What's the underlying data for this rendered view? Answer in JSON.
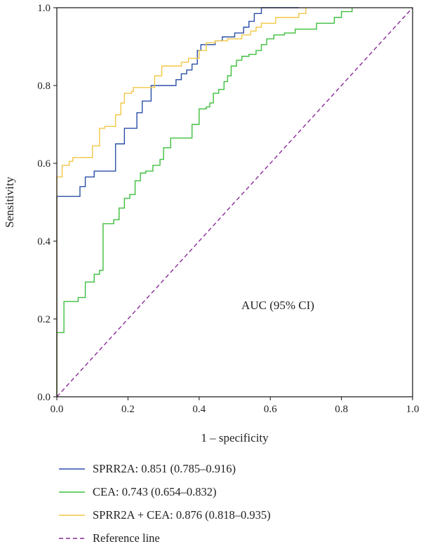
{
  "chart_data": {
    "type": "line",
    "title": "",
    "xlabel": "1 – specificity",
    "ylabel": "Sensitivity",
    "xlim": [
      0,
      1
    ],
    "ylim": [
      0,
      1
    ],
    "x_ticks": [
      "0.0",
      "0.2",
      "0.4",
      "0.6",
      "0.8",
      "1.0"
    ],
    "y_ticks": [
      "0.0",
      "0.2",
      "0.4",
      "0.6",
      "0.8",
      "1.0"
    ],
    "annotation": "AUC (95% CI)",
    "grid": false,
    "legend_position": "bottom",
    "series": [
      {
        "name": "SPRR2A: 0.851 (0.785–0.916)",
        "color": "#2a4ea8",
        "x": [
          0,
          0,
          0.065,
          0.065,
          0.08,
          0.08,
          0.105,
          0.105,
          0.165,
          0.165,
          0.19,
          0.19,
          0.225,
          0.225,
          0.24,
          0.24,
          0.265,
          0.265,
          0.335,
          0.335,
          0.35,
          0.35,
          0.365,
          0.365,
          0.38,
          0.38,
          0.395,
          0.395,
          0.405,
          0.405,
          0.445,
          0.445,
          0.465,
          0.465,
          0.5,
          0.5,
          0.525,
          0.525,
          0.54,
          0.54,
          0.555,
          0.555,
          0.575,
          0.575,
          0.68,
          0.68
        ],
        "y": [
          0,
          0.515,
          0.515,
          0.54,
          0.54,
          0.565,
          0.565,
          0.58,
          0.58,
          0.65,
          0.65,
          0.69,
          0.69,
          0.73,
          0.73,
          0.76,
          0.76,
          0.8,
          0.8,
          0.815,
          0.815,
          0.83,
          0.83,
          0.84,
          0.84,
          0.855,
          0.855,
          0.89,
          0.89,
          0.905,
          0.905,
          0.915,
          0.915,
          0.925,
          0.925,
          0.935,
          0.935,
          0.95,
          0.95,
          0.965,
          0.965,
          0.985,
          0.985,
          1.0,
          1.0,
          1.0
        ]
      },
      {
        "name": "CEA: 0.743 (0.654–0.832)",
        "color": "#3cbf3c",
        "x": [
          0,
          0,
          0.02,
          0.02,
          0.06,
          0.06,
          0.08,
          0.08,
          0.105,
          0.105,
          0.12,
          0.12,
          0.13,
          0.13,
          0.16,
          0.16,
          0.175,
          0.175,
          0.19,
          0.19,
          0.205,
          0.205,
          0.22,
          0.22,
          0.235,
          0.235,
          0.25,
          0.25,
          0.27,
          0.27,
          0.29,
          0.29,
          0.3,
          0.3,
          0.32,
          0.32,
          0.38,
          0.38,
          0.4,
          0.4,
          0.42,
          0.42,
          0.43,
          0.43,
          0.44,
          0.44,
          0.455,
          0.455,
          0.47,
          0.47,
          0.48,
          0.48,
          0.49,
          0.49,
          0.505,
          0.505,
          0.52,
          0.52,
          0.54,
          0.54,
          0.56,
          0.56,
          0.575,
          0.575,
          0.59,
          0.59,
          0.61,
          0.61,
          0.64,
          0.64,
          0.67,
          0.67,
          0.73,
          0.73,
          0.78,
          0.78,
          0.8,
          0.8,
          0.83,
          0.83
        ],
        "y": [
          0,
          0.165,
          0.165,
          0.245,
          0.245,
          0.255,
          0.255,
          0.295,
          0.295,
          0.315,
          0.315,
          0.325,
          0.325,
          0.445,
          0.445,
          0.455,
          0.455,
          0.485,
          0.485,
          0.51,
          0.51,
          0.52,
          0.52,
          0.555,
          0.555,
          0.575,
          0.575,
          0.58,
          0.58,
          0.595,
          0.595,
          0.61,
          0.61,
          0.64,
          0.64,
          0.665,
          0.665,
          0.7,
          0.7,
          0.74,
          0.74,
          0.745,
          0.745,
          0.755,
          0.755,
          0.78,
          0.78,
          0.79,
          0.79,
          0.81,
          0.81,
          0.825,
          0.825,
          0.85,
          0.85,
          0.865,
          0.865,
          0.875,
          0.875,
          0.88,
          0.88,
          0.89,
          0.89,
          0.905,
          0.905,
          0.92,
          0.92,
          0.93,
          0.93,
          0.935,
          0.935,
          0.945,
          0.945,
          0.96,
          0.96,
          0.975,
          0.975,
          0.99,
          0.99,
          1.0
        ]
      },
      {
        "name": "SPRR2A + CEA: 0.876 (0.818–0.935)",
        "color": "#f2c744",
        "x": [
          0,
          0,
          0.015,
          0.015,
          0.035,
          0.035,
          0.045,
          0.045,
          0.1,
          0.1,
          0.12,
          0.12,
          0.135,
          0.135,
          0.165,
          0.165,
          0.18,
          0.18,
          0.19,
          0.19,
          0.21,
          0.21,
          0.215,
          0.215,
          0.275,
          0.275,
          0.295,
          0.295,
          0.35,
          0.35,
          0.37,
          0.37,
          0.4,
          0.4,
          0.42,
          0.42,
          0.445,
          0.445,
          0.48,
          0.48,
          0.52,
          0.52,
          0.545,
          0.545,
          0.56,
          0.56,
          0.575,
          0.575,
          0.615,
          0.615,
          0.68,
          0.68,
          0.7,
          0.7
        ],
        "y": [
          0,
          0.565,
          0.565,
          0.595,
          0.595,
          0.605,
          0.605,
          0.615,
          0.615,
          0.645,
          0.645,
          0.69,
          0.69,
          0.695,
          0.695,
          0.725,
          0.725,
          0.755,
          0.755,
          0.78,
          0.78,
          0.785,
          0.785,
          0.795,
          0.795,
          0.825,
          0.825,
          0.85,
          0.85,
          0.86,
          0.86,
          0.87,
          0.87,
          0.89,
          0.89,
          0.91,
          0.91,
          0.915,
          0.915,
          0.92,
          0.92,
          0.93,
          0.93,
          0.94,
          0.94,
          0.95,
          0.95,
          0.96,
          0.96,
          0.975,
          0.975,
          0.985,
          0.985,
          1.0
        ]
      },
      {
        "name": "Reference line",
        "color": "#8b2a9a",
        "dashed": true,
        "x": [
          0,
          1
        ],
        "y": [
          0,
          1
        ]
      }
    ]
  }
}
